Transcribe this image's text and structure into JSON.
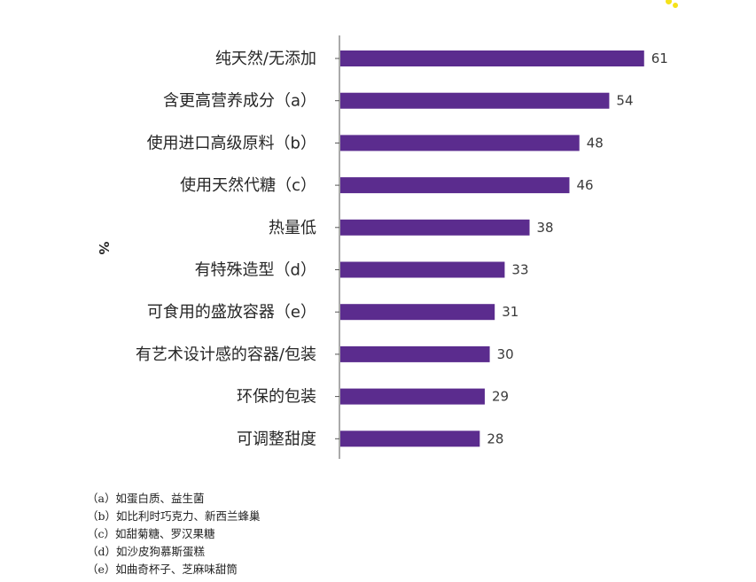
{
  "chart_data": {
    "type": "bar",
    "orientation": "horizontal",
    "title": "",
    "ylabel": "%",
    "xlabel": "",
    "xlim": [
      0,
      63
    ],
    "grid": false,
    "legend": "none",
    "bar_color": "#5b2c8e",
    "categories": [
      "纯天然/无添加",
      "含更高营养成分（a）",
      "使用进口高级原料（b）",
      "使用天然代糖（c）",
      "热量低",
      "有特殊造型（d）",
      "可食用的盛放容器（e）",
      "有艺术设计感的容器/包装",
      "环保的包装",
      "可调整甜度"
    ],
    "values": [
      61,
      54,
      48,
      46,
      38,
      33,
      31,
      30,
      29,
      28
    ]
  },
  "footnotes": [
    "（a）如蛋白质、益生菌",
    "（b）如比利时巧克力、新西兰蜂巢",
    "（c）如甜菊糖、罗汉果糖",
    "（d）如沙皮狗慕斯蛋糕",
    "（e）如曲奇杯子、芝麻味甜筒"
  ],
  "colors": {
    "bar": "#5b2c8e",
    "axis": "#555555",
    "text": "#262626",
    "decor": "#f5e21a"
  }
}
